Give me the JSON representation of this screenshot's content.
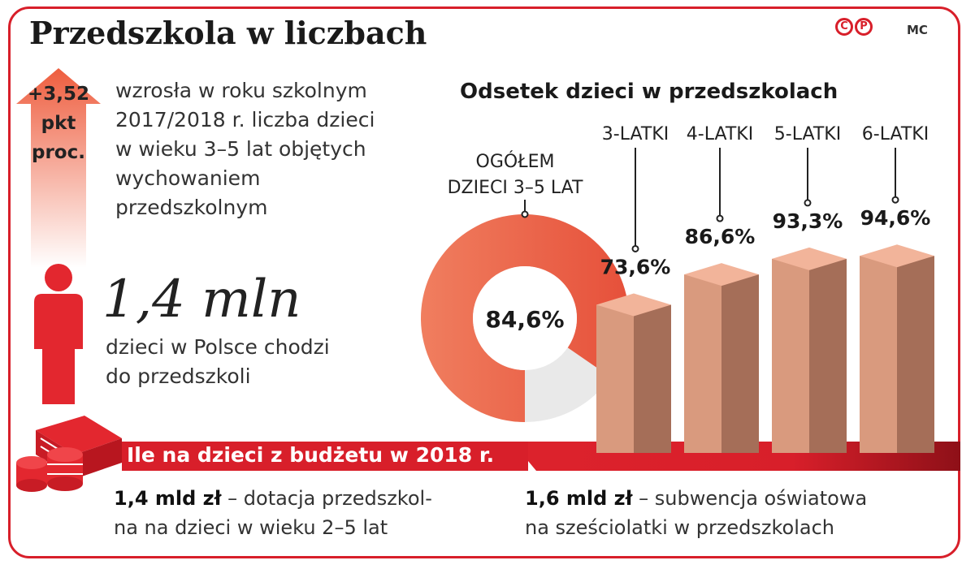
{
  "header": {
    "title": "Przedszkola w liczbach",
    "author": "MC",
    "logo": [
      "C",
      "P"
    ]
  },
  "increase": {
    "value_lines": [
      "+3,52",
      "pkt",
      "proc."
    ],
    "text_lines": [
      "wzrosła w roku szkolnym",
      "2017/2018 r. liczba dzieci",
      "w wieku 3–5 lat objętych",
      "wychowaniem",
      "przedszkolnym"
    ]
  },
  "children": {
    "number": "1,4 mln",
    "desc_lines": [
      "dzieci w Polsce chodzi",
      "do przedszkoli"
    ]
  },
  "budget": {
    "title": "Ile na dzieci z budżetu w 2018 r.",
    "items": [
      {
        "amount": "1,4 mld zł",
        "line1": " – dotacja przedszkol-",
        "line2": "na na dzieci w wieku 2–5 lat"
      },
      {
        "amount": "1,6 mld zł",
        "line1": " – subwencja oświatowa",
        "line2": "na sześciolatki w przedszkolach"
      }
    ]
  },
  "chart_data": [
    {
      "type": "pie",
      "labels": [
        "OGÓŁEM",
        "DZIECI 3–5 LAT"
      ],
      "value": 84.6,
      "value_label": "84,6%",
      "colors": {
        "filled": "#ef6a4f",
        "empty": "#e9e9e9"
      }
    },
    {
      "type": "bar",
      "title": "Odsetek dzieci w przedszkolach",
      "categories": [
        "3-LATKI",
        "4-LATKI",
        "5-LATKI",
        "6-LATKI"
      ],
      "values": [
        73.6,
        86.6,
        93.3,
        94.6
      ],
      "value_labels": [
        "73,6%",
        "86,6%",
        "93,3%",
        "94,6%"
      ],
      "colors": {
        "front": "#d99a7e",
        "side": "#a56e58",
        "top": "#f2b49a"
      }
    }
  ],
  "colors": {
    "accent": "#d81f2a",
    "dark_red": "#8e1018"
  }
}
